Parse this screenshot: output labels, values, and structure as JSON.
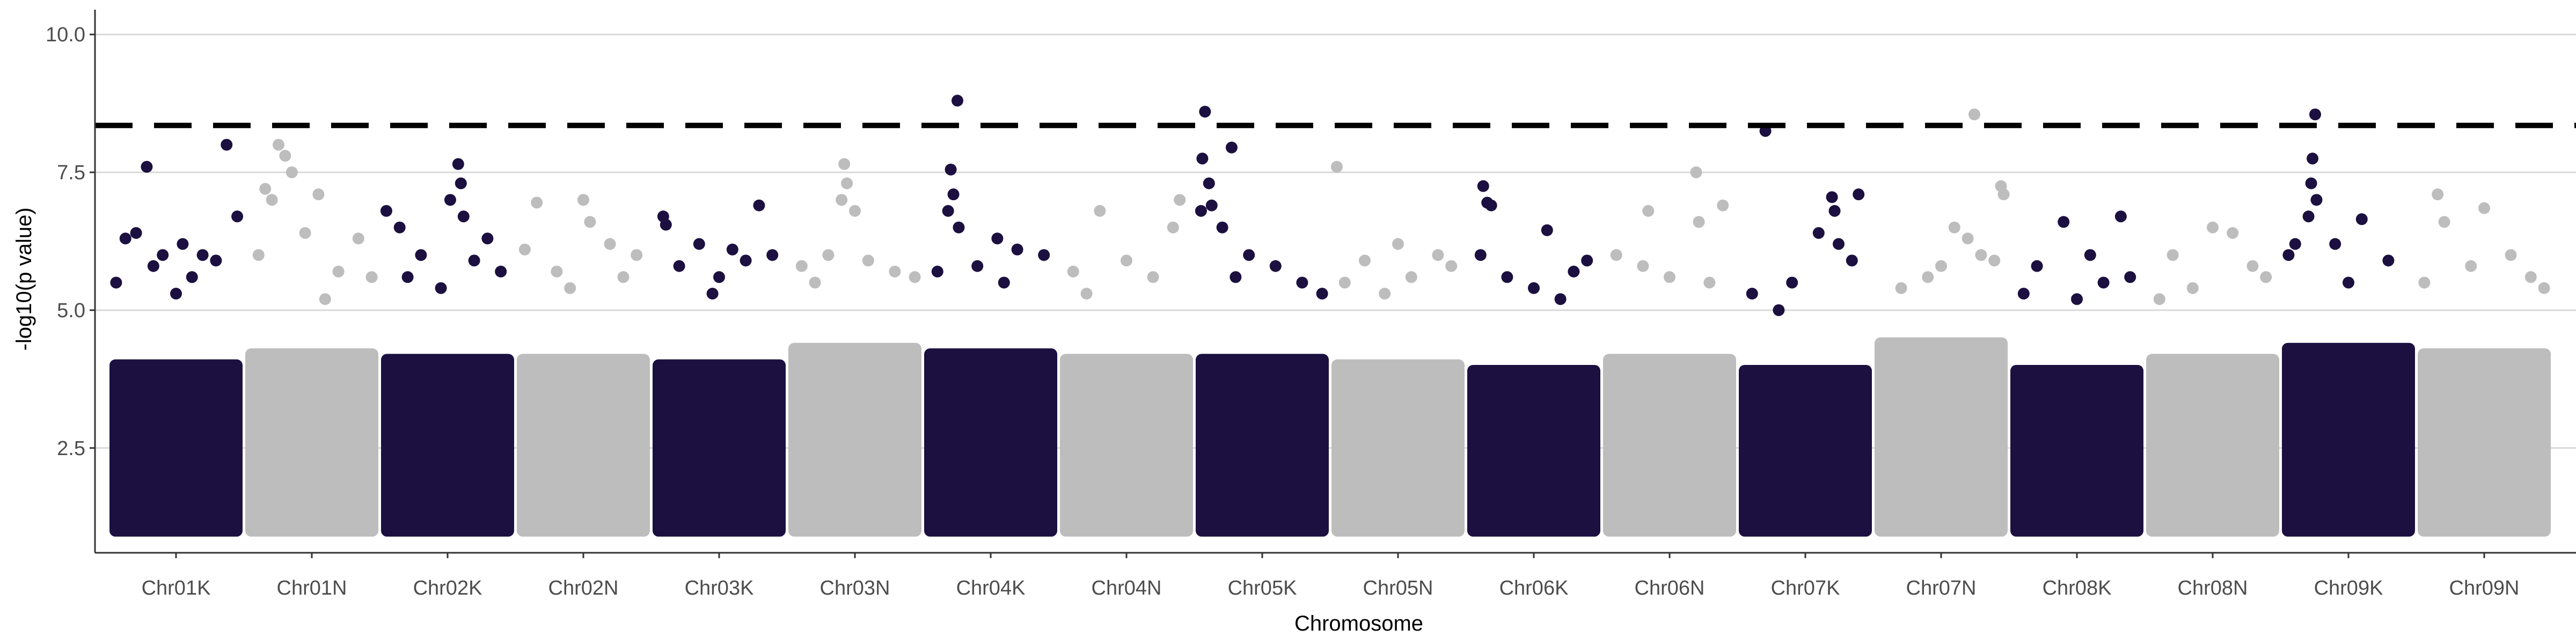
{
  "chart_data": {
    "type": "scatter",
    "title": "",
    "xlabel": "Chromosome",
    "ylabel": "-log10(p value)",
    "ylim": [
      0.6,
      10.45
    ],
    "yticks": [
      2.5,
      5.0,
      7.5,
      10.0
    ],
    "ytick_labels": [
      "2.5",
      "5.0",
      "7.5",
      "10.0"
    ],
    "grid": "horizontal major lines",
    "legend": "none",
    "threshold": 8.35,
    "threshold_style": "dashed black line",
    "point_min": 1.0,
    "colors": {
      "K": "#1b1040",
      "N": "#bdbdbd",
      "grid": "#d9d9d9",
      "axis": "#333333",
      "threshold": "#000000"
    },
    "categories": [
      "Chr01K",
      "Chr01N",
      "Chr02K",
      "Chr02N",
      "Chr03K",
      "Chr03N",
      "Chr04K",
      "Chr04N",
      "Chr05K",
      "Chr05N",
      "Chr06K",
      "Chr06N",
      "Chr07K",
      "Chr07N",
      "Chr08K",
      "Chr08N",
      "Chr09K",
      "Chr09N"
    ],
    "series": [
      {
        "chr": "Chr01K",
        "group": "K",
        "dense_top": 4.0,
        "points": [
          [
            0.28,
            7.6
          ],
          [
            0.88,
            8.0
          ],
          [
            0.12,
            6.3
          ],
          [
            0.2,
            6.4
          ],
          [
            0.4,
            6.0
          ],
          [
            0.55,
            6.2
          ],
          [
            0.7,
            6.0
          ],
          [
            0.96,
            6.7
          ],
          [
            0.05,
            5.5
          ],
          [
            0.33,
            5.8
          ],
          [
            0.62,
            5.6
          ],
          [
            0.8,
            5.9
          ],
          [
            0.5,
            5.3
          ]
        ]
      },
      {
        "chr": "Chr01N",
        "group": "N",
        "dense_top": 4.2,
        "points": [
          [
            0.25,
            8.0
          ],
          [
            0.3,
            7.8
          ],
          [
            0.35,
            7.5
          ],
          [
            0.15,
            7.2
          ],
          [
            0.2,
            7.0
          ],
          [
            0.55,
            7.1
          ],
          [
            0.85,
            6.3
          ],
          [
            0.1,
            6.0
          ],
          [
            0.45,
            6.4
          ],
          [
            0.7,
            5.7
          ],
          [
            0.95,
            5.6
          ],
          [
            0.6,
            5.2
          ]
        ]
      },
      {
        "chr": "Chr02K",
        "group": "K",
        "dense_top": 4.1,
        "points": [
          [
            0.58,
            7.65
          ],
          [
            0.6,
            7.3
          ],
          [
            0.52,
            7.0
          ],
          [
            0.04,
            6.8
          ],
          [
            0.14,
            6.5
          ],
          [
            0.62,
            6.7
          ],
          [
            0.8,
            6.3
          ],
          [
            0.3,
            6.0
          ],
          [
            0.9,
            5.7
          ],
          [
            0.45,
            5.4
          ],
          [
            0.7,
            5.9
          ],
          [
            0.2,
            5.6
          ]
        ]
      },
      {
        "chr": "Chr02N",
        "group": "N",
        "dense_top": 4.1,
        "points": [
          [
            0.15,
            6.95
          ],
          [
            0.5,
            7.0
          ],
          [
            0.55,
            6.6
          ],
          [
            0.7,
            6.2
          ],
          [
            0.06,
            6.1
          ],
          [
            0.3,
            5.7
          ],
          [
            0.8,
            5.6
          ],
          [
            0.9,
            6.0
          ],
          [
            0.4,
            5.4
          ]
        ]
      },
      {
        "chr": "Chr03K",
        "group": "K",
        "dense_top": 4.0,
        "points": [
          [
            0.08,
            6.7
          ],
          [
            0.1,
            6.55
          ],
          [
            0.8,
            6.9
          ],
          [
            0.35,
            6.2
          ],
          [
            0.6,
            6.1
          ],
          [
            0.9,
            6.0
          ],
          [
            0.2,
            5.8
          ],
          [
            0.5,
            5.6
          ],
          [
            0.7,
            5.9
          ],
          [
            0.45,
            5.3
          ]
        ]
      },
      {
        "chr": "Chr03N",
        "group": "N",
        "dense_top": 4.3,
        "points": [
          [
            0.42,
            7.65
          ],
          [
            0.44,
            7.3
          ],
          [
            0.4,
            7.0
          ],
          [
            0.5,
            6.8
          ],
          [
            0.3,
            6.0
          ],
          [
            0.1,
            5.8
          ],
          [
            0.6,
            5.9
          ],
          [
            0.8,
            5.7
          ],
          [
            0.95,
            5.6
          ],
          [
            0.2,
            5.5
          ]
        ]
      },
      {
        "chr": "Chr04K",
        "group": "K",
        "dense_top": 4.2,
        "points": [
          [
            0.25,
            8.8
          ],
          [
            0.2,
            7.55
          ],
          [
            0.22,
            7.1
          ],
          [
            0.18,
            6.8
          ],
          [
            0.26,
            6.5
          ],
          [
            0.55,
            6.3
          ],
          [
            0.7,
            6.1
          ],
          [
            0.9,
            6.0
          ],
          [
            0.4,
            5.8
          ],
          [
            0.1,
            5.7
          ],
          [
            0.6,
            5.5
          ]
        ]
      },
      {
        "chr": "Chr04N",
        "group": "N",
        "dense_top": 4.1,
        "points": [
          [
            0.3,
            6.8
          ],
          [
            0.9,
            7.0
          ],
          [
            0.85,
            6.5
          ],
          [
            0.5,
            5.9
          ],
          [
            0.1,
            5.7
          ],
          [
            0.7,
            5.6
          ],
          [
            0.2,
            5.3
          ]
        ]
      },
      {
        "chr": "Chr05K",
        "group": "K",
        "dense_top": 4.1,
        "points": [
          [
            0.07,
            8.6
          ],
          [
            0.27,
            7.95
          ],
          [
            0.05,
            7.75
          ],
          [
            0.1,
            7.3
          ],
          [
            0.12,
            6.9
          ],
          [
            0.2,
            6.5
          ],
          [
            0.04,
            6.8
          ],
          [
            0.4,
            6.0
          ],
          [
            0.6,
            5.8
          ],
          [
            0.8,
            5.5
          ],
          [
            0.3,
            5.6
          ],
          [
            0.95,
            5.3
          ]
        ]
      },
      {
        "chr": "Chr05N",
        "group": "N",
        "dense_top": 4.0,
        "points": [
          [
            0.04,
            7.6
          ],
          [
            0.5,
            6.2
          ],
          [
            0.8,
            6.0
          ],
          [
            0.25,
            5.9
          ],
          [
            0.6,
            5.6
          ],
          [
            0.9,
            5.8
          ],
          [
            0.1,
            5.5
          ],
          [
            0.4,
            5.3
          ]
        ]
      },
      {
        "chr": "Chr06K",
        "group": "K",
        "dense_top": 3.9,
        "points": [
          [
            0.12,
            7.25
          ],
          [
            0.15,
            6.95
          ],
          [
            0.18,
            6.9
          ],
          [
            0.6,
            6.45
          ],
          [
            0.1,
            6.0
          ],
          [
            0.3,
            5.6
          ],
          [
            0.8,
            5.7
          ],
          [
            0.5,
            5.4
          ],
          [
            0.9,
            5.9
          ],
          [
            0.7,
            5.2
          ]
        ]
      },
      {
        "chr": "Chr06N",
        "group": "N",
        "dense_top": 4.1,
        "points": [
          [
            0.7,
            7.5
          ],
          [
            0.34,
            6.8
          ],
          [
            0.9,
            6.9
          ],
          [
            0.72,
            6.6
          ],
          [
            0.1,
            6.0
          ],
          [
            0.5,
            5.6
          ],
          [
            0.3,
            5.8
          ],
          [
            0.8,
            5.5
          ]
        ]
      },
      {
        "chr": "Chr07K",
        "group": "K",
        "dense_top": 3.9,
        "points": [
          [
            0.2,
            8.25
          ],
          [
            0.9,
            7.1
          ],
          [
            0.7,
            7.05
          ],
          [
            0.72,
            6.8
          ],
          [
            0.6,
            6.4
          ],
          [
            0.75,
            6.2
          ],
          [
            0.4,
            5.5
          ],
          [
            0.1,
            5.3
          ],
          [
            0.85,
            5.9
          ],
          [
            0.3,
            5.0
          ]
        ]
      },
      {
        "chr": "Chr07N",
        "group": "N",
        "dense_top": 4.4,
        "points": [
          [
            0.75,
            8.55
          ],
          [
            0.95,
            7.25
          ],
          [
            0.97,
            7.1
          ],
          [
            0.6,
            6.5
          ],
          [
            0.7,
            6.3
          ],
          [
            0.8,
            6.0
          ],
          [
            0.5,
            5.8
          ],
          [
            0.4,
            5.6
          ],
          [
            0.2,
            5.4
          ],
          [
            0.9,
            5.9
          ]
        ]
      },
      {
        "chr": "Chr08K",
        "group": "K",
        "dense_top": 3.9,
        "points": [
          [
            0.4,
            6.6
          ],
          [
            0.83,
            6.7
          ],
          [
            0.6,
            6.0
          ],
          [
            0.2,
            5.8
          ],
          [
            0.9,
            5.6
          ],
          [
            0.1,
            5.3
          ],
          [
            0.7,
            5.5
          ],
          [
            0.5,
            5.2
          ]
        ]
      },
      {
        "chr": "Chr08N",
        "group": "N",
        "dense_top": 4.1,
        "points": [
          [
            0.5,
            6.5
          ],
          [
            0.65,
            6.4
          ],
          [
            0.2,
            6.0
          ],
          [
            0.8,
            5.8
          ],
          [
            0.9,
            5.6
          ],
          [
            0.35,
            5.4
          ],
          [
            0.1,
            5.2
          ]
        ]
      },
      {
        "chr": "Chr09K",
        "group": "K",
        "dense_top": 4.3,
        "points": [
          [
            0.25,
            8.55
          ],
          [
            0.23,
            7.75
          ],
          [
            0.22,
            7.3
          ],
          [
            0.26,
            7.0
          ],
          [
            0.2,
            6.7
          ],
          [
            0.05,
            6.0
          ],
          [
            0.1,
            6.2
          ],
          [
            0.6,
            6.65
          ],
          [
            0.4,
            6.2
          ],
          [
            0.8,
            5.9
          ],
          [
            0.5,
            5.5
          ]
        ]
      },
      {
        "chr": "Chr09N",
        "group": "N",
        "dense_top": 4.2,
        "points": [
          [
            0.15,
            7.1
          ],
          [
            0.5,
            6.85
          ],
          [
            0.2,
            6.6
          ],
          [
            0.7,
            6.0
          ],
          [
            0.4,
            5.8
          ],
          [
            0.85,
            5.6
          ],
          [
            0.05,
            5.5
          ],
          [
            0.95,
            5.4
          ]
        ]
      }
    ]
  }
}
